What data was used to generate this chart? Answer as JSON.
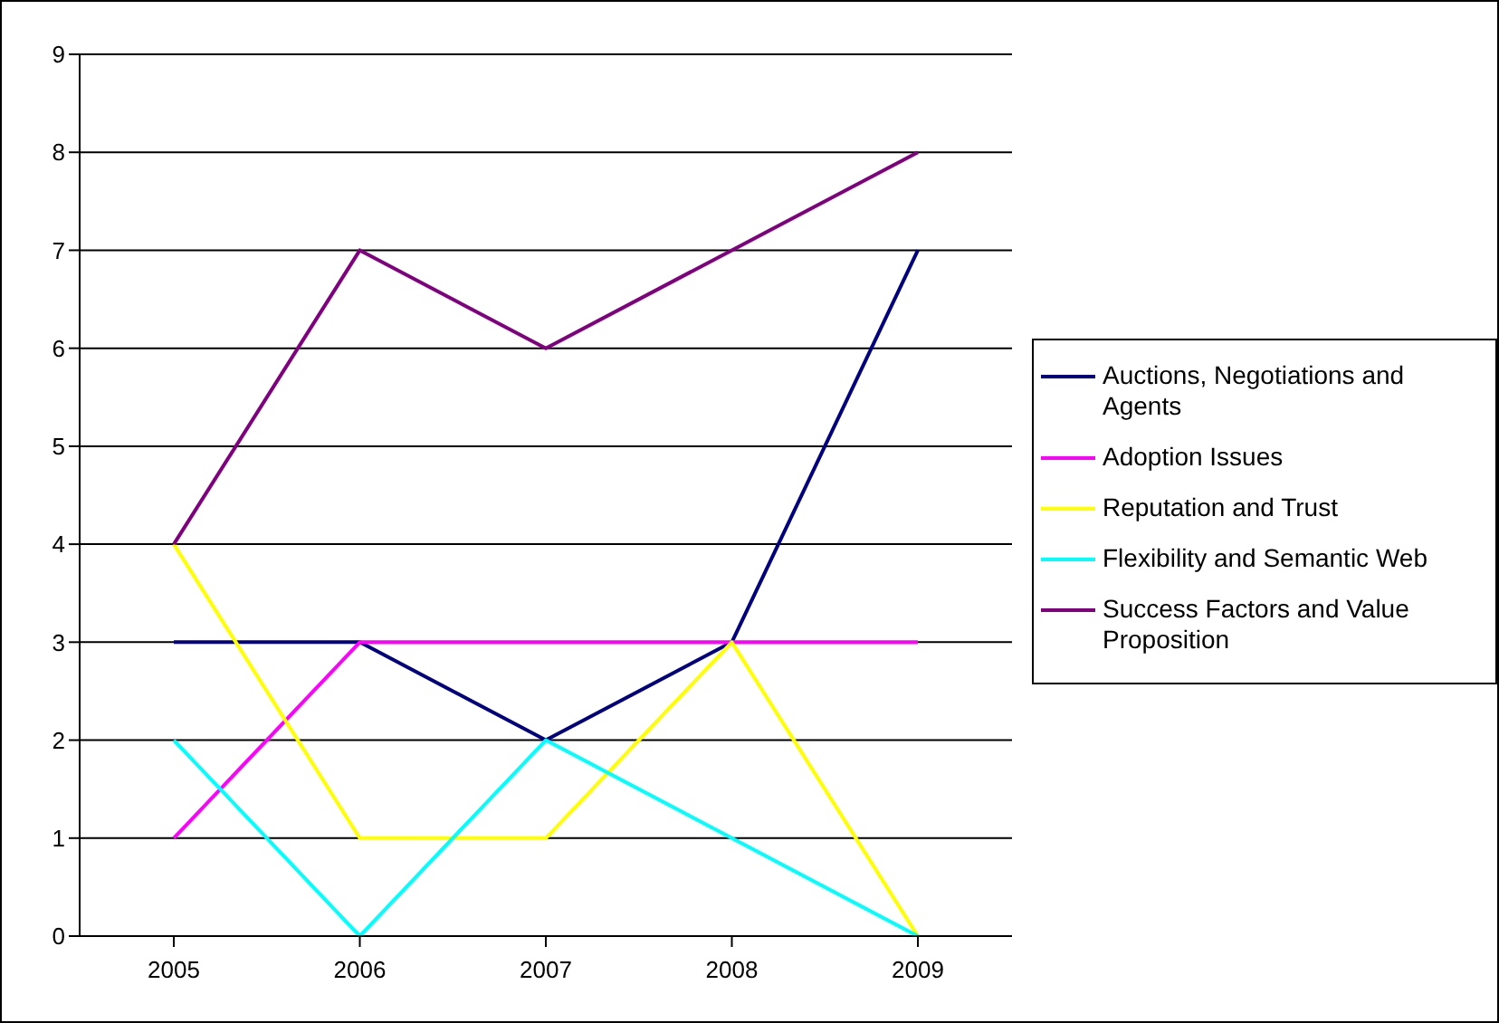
{
  "chart_data": {
    "type": "line",
    "categories": [
      "2005",
      "2006",
      "2007",
      "2008",
      "2009"
    ],
    "series": [
      {
        "name": "Auctions, Negotiations and Agents",
        "color": "#000080",
        "values": [
          3,
          3,
          2,
          3,
          7
        ]
      },
      {
        "name": "Adoption Issues",
        "color": "#ff00ff",
        "values": [
          1,
          3,
          3,
          3,
          3
        ]
      },
      {
        "name": "Reputation and Trust",
        "color": "#ffff00",
        "values": [
          4,
          1,
          1,
          3,
          0
        ]
      },
      {
        "name": "Flexibility and Semantic Web",
        "color": "#00ffff",
        "values": [
          2,
          0,
          2,
          1,
          0
        ]
      },
      {
        "name": "Success Factors and Value Proposition",
        "color": "#800080",
        "values": [
          4,
          7,
          6,
          7,
          8
        ]
      }
    ],
    "ylim": [
      0,
      9
    ],
    "yticks": [
      0,
      1,
      2,
      3,
      4,
      5,
      6,
      7,
      8,
      9
    ],
    "grid": "y",
    "legend": "right",
    "marker": "none",
    "line_style": "solid"
  }
}
